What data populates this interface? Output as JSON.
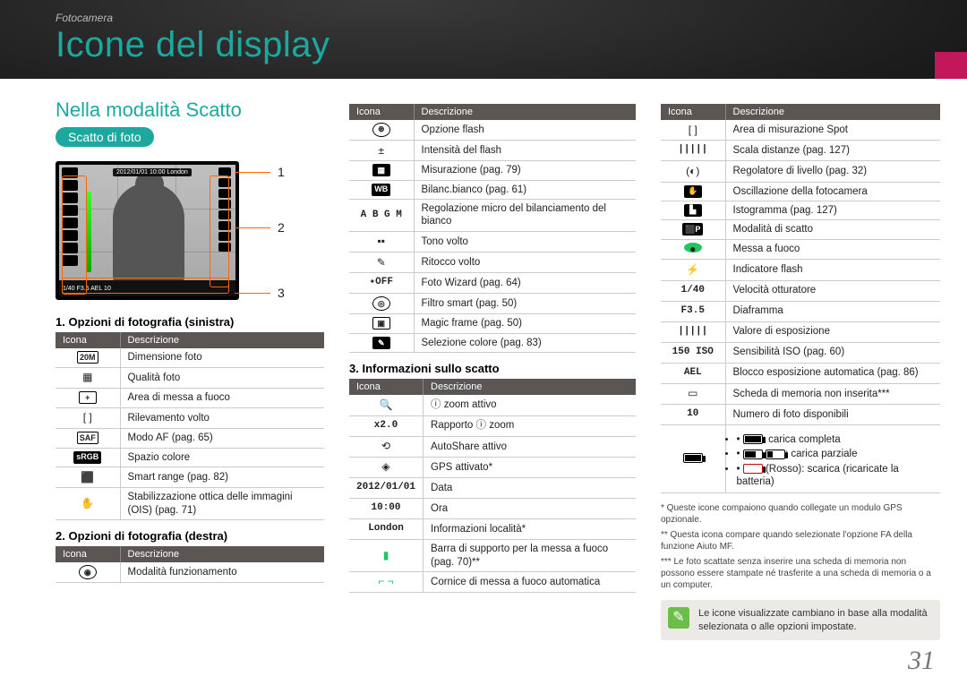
{
  "breadcrumb": "Fotocamera",
  "title": "Icone del display",
  "section_title": "Nella modalità Scatto",
  "pill": "Scatto di foto",
  "headers": {
    "icon": "Icona",
    "desc": "Descrizione"
  },
  "diagram": {
    "callouts": [
      "1",
      "2",
      "3"
    ],
    "top_text": "2012/01/01 10:00",
    "top_sub": "London",
    "strip": "1/40  F3.5                    AEL   10"
  },
  "subheads": {
    "t1": "1. Opzioni di fotografia (sinistra)",
    "t2": "2. Opzioni di fotografia (destra)",
    "t3": "3. Informazioni sullo scatto"
  },
  "table1": [
    {
      "icon": "20M",
      "cls": "box",
      "desc": "Dimensione foto"
    },
    {
      "icon": "▦",
      "cls": "",
      "desc": "Qualità foto"
    },
    {
      "icon": "+",
      "cls": "box",
      "desc": "Area di messa a fuoco"
    },
    {
      "icon": "[ ]",
      "cls": "",
      "desc": "Rilevamento volto"
    },
    {
      "icon": "SAF",
      "cls": "box",
      "desc": "Modo AF (pag. 65)"
    },
    {
      "icon": "sRGB",
      "cls": "boxfill",
      "desc": "Spazio colore"
    },
    {
      "icon": "⬛",
      "cls": "",
      "desc": "Smart range (pag. 82)"
    },
    {
      "icon": "✋",
      "cls": "",
      "desc": "Stabilizzazione ottica delle immagini (OIS) (pag. 71)"
    }
  ],
  "table2": [
    {
      "icon": "◉",
      "cls": "circ",
      "desc": "Modalità funzionamento"
    },
    {
      "icon": "⊛",
      "cls": "circ",
      "desc": "Opzione flash"
    },
    {
      "icon": "±",
      "cls": "",
      "desc": "Intensità del flash"
    },
    {
      "icon": "▦",
      "cls": "boxfill",
      "desc": "Misurazione (pag. 79)"
    },
    {
      "icon": "WB",
      "cls": "boxfill",
      "desc": "Bilanc.bianco (pag. 61)"
    },
    {
      "icon": "A B\nG M",
      "cls": "txt",
      "desc": "Regolazione micro del bilanciamento del bianco"
    },
    {
      "icon": "▪▪",
      "cls": "",
      "desc": "Tono volto"
    },
    {
      "icon": "✎",
      "cls": "",
      "desc": "Ritocco volto"
    },
    {
      "icon": "✦OFF",
      "cls": "txt",
      "desc": "Foto Wizard (pag. 64)"
    },
    {
      "icon": "◎",
      "cls": "circ",
      "desc": "Filtro smart (pag. 50)"
    },
    {
      "icon": "▣",
      "cls": "box",
      "desc": "Magic frame (pag. 50)"
    },
    {
      "icon": "✎",
      "cls": "boxfill",
      "desc": "Selezione colore (pag. 83)"
    }
  ],
  "table3": [
    {
      "icon": "🔍",
      "cls": "",
      "desc": "ⓘ zoom attivo"
    },
    {
      "icon": "x2.0",
      "cls": "txt",
      "desc": "Rapporto ⓘ zoom"
    },
    {
      "icon": "⟲",
      "cls": "",
      "desc": "AutoShare attivo"
    },
    {
      "icon": "◈",
      "cls": "",
      "desc": "GPS attivato*"
    },
    {
      "icon": "2012/01/01",
      "cls": "txt",
      "desc": "Data"
    },
    {
      "icon": "10:00",
      "cls": "txt",
      "desc": "Ora"
    },
    {
      "icon": "London",
      "cls": "txt",
      "desc": "Informazioni località*"
    },
    {
      "icon": "▮",
      "cls": "",
      "desc": "Barra di supporto per la messa a fuoco (pag. 70)**",
      "iconColor": "#22c55e"
    },
    {
      "icon": "⌐ ¬",
      "cls": "",
      "desc": "Cornice di messa a fuoco automatica",
      "iconColor": "#22c55e"
    }
  ],
  "table4": [
    {
      "icon": "[   ]",
      "cls": "",
      "desc": "Area di misurazione Spot"
    },
    {
      "icon": "|||||",
      "cls": "txt",
      "desc": "Scala distanze (pag. 127)"
    },
    {
      "icon": "(◐)",
      "cls": "",
      "desc": "Regolatore di livello (pag. 32)"
    },
    {
      "icon": "✋",
      "cls": "boxfill",
      "desc": "Oscillazione della fotocamera"
    },
    {
      "icon": "▙",
      "cls": "boxfill",
      "desc": "Istogramma (pag. 127)"
    },
    {
      "icon": "⬛P",
      "cls": "boxfill",
      "desc": "Modalità di scatto"
    },
    {
      "icon": "●",
      "cls": "dot",
      "desc": "Messa a fuoco"
    },
    {
      "icon": "⚡",
      "cls": "",
      "desc": "Indicatore flash"
    },
    {
      "icon": "1/40",
      "cls": "txt",
      "desc": "Velocità otturatore"
    },
    {
      "icon": "F3.5",
      "cls": "txt",
      "desc": "Diaframma"
    },
    {
      "icon": "|||||",
      "cls": "txt",
      "desc": "Valore di esposizione"
    },
    {
      "icon": "150\nISO",
      "cls": "txt",
      "desc": "Sensibilità ISO (pag. 60)"
    },
    {
      "icon": "AEL",
      "cls": "txt",
      "desc": "Blocco esposizione automatica (pag. 86)"
    },
    {
      "icon": "▭",
      "cls": "",
      "desc": "Scheda di memoria non inserita***"
    },
    {
      "icon": "10",
      "cls": "txt",
      "desc": "Numero di foto disponibili"
    }
  ],
  "battery": {
    "full": ": carica completa",
    "partial": ": carica parziale",
    "empty": "(Rosso): scarica (ricaricate la batteria)"
  },
  "footnotes": [
    "* Queste icone compaiono quando collegate un modulo GPS opzionale.",
    "** Questa icona compare quando selezionate l'opzione FA della funzione Aiuto MF.",
    "*** Le foto scattate senza inserire una scheda di memoria non possono essere stampate né trasferite a una scheda di memoria o a un computer."
  ],
  "note": "Le icone visualizzate cambiano in base alla modalità selezionata o alle opzioni impostate.",
  "page": "31"
}
